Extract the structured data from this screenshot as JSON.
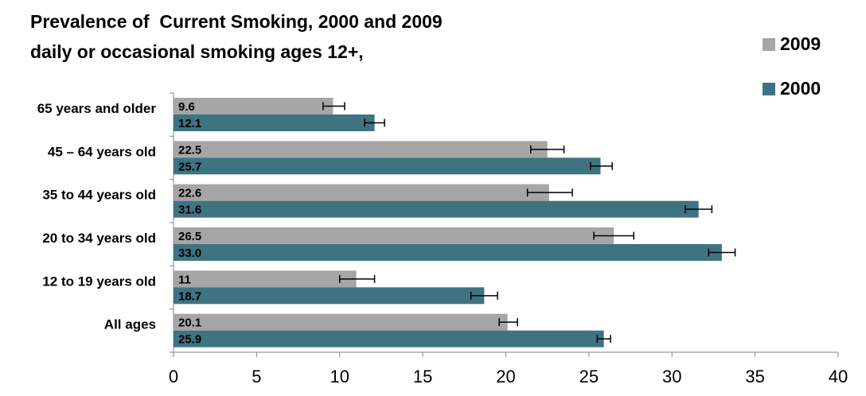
{
  "title_line1": "Prevalence of  Current Smoking, 2000 and 2009",
  "title_line2": "daily or occasional smoking ages 12+,",
  "legend": [
    {
      "name": "2009",
      "color": "#a6a6a6"
    },
    {
      "name": "2000",
      "color": "#3e7382"
    }
  ],
  "chart_data": {
    "type": "bar",
    "orientation": "horizontal",
    "categories": [
      "65 years and older",
      "45 – 64 years old",
      "35 to 44 years old",
      "20 to 34 years old",
      "12 to 19 years old",
      "All ages"
    ],
    "series": [
      {
        "name": "2009",
        "color": "#a6a6a6",
        "values": [
          9.6,
          22.5,
          22.6,
          26.5,
          11,
          20.1
        ],
        "labels": [
          "9.6",
          "22.5",
          "22.6",
          "26.5",
          "11",
          "20.1"
        ],
        "error_low": [
          9.0,
          21.5,
          21.3,
          25.3,
          10.0,
          19.6
        ],
        "error_high": [
          10.3,
          23.5,
          24.0,
          27.7,
          12.1,
          20.7
        ]
      },
      {
        "name": "2000",
        "color": "#3e7382",
        "values": [
          12.1,
          25.7,
          31.6,
          33.0,
          18.7,
          25.9
        ],
        "labels": [
          "12.1",
          "25.7",
          "31.6",
          "33.0",
          "18.7",
          "25.9"
        ],
        "error_low": [
          11.5,
          25.1,
          30.8,
          32.2,
          17.9,
          25.5
        ],
        "error_high": [
          12.7,
          26.4,
          32.4,
          33.8,
          19.5,
          26.3
        ]
      }
    ],
    "xlim": [
      0,
      40
    ],
    "xticks": [
      "0",
      "5",
      "10",
      "15",
      "20",
      "25",
      "30",
      "35",
      "40"
    ],
    "title": "Prevalence of  Current Smoking, 2000 and 2009",
    "subtitle": "daily or occasional smoking ages 12+,",
    "legend_position": "top-right",
    "grid": false
  }
}
